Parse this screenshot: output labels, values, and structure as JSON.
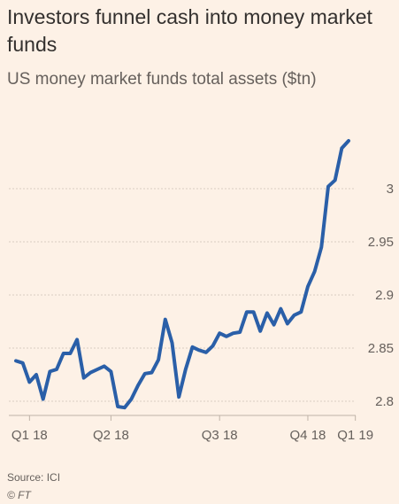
{
  "title": "Investors funnel cash into money market funds",
  "subtitle": "US money market funds total assets ($tn)",
  "source": "Source: ICI",
  "copyright": "© FT",
  "colors": {
    "line": "#2a5fa8",
    "grid": "#d9cdc1",
    "text": "#66605c",
    "background": "#fdf1e6"
  },
  "chart_data": {
    "type": "line",
    "title": "US money market funds total assets ($tn)",
    "xlabel": "",
    "ylabel": "",
    "ylim": [
      2.79,
      3.05
    ],
    "yticks": [
      2.8,
      2.85,
      2.9,
      2.95,
      3
    ],
    "ytick_labels": [
      "2.8",
      "2.85",
      "2.9",
      "2.95",
      "3"
    ],
    "xtick_labels": [
      "Q1 18",
      "Q2 18",
      "Q3 18",
      "Q4 18",
      "Q1 19"
    ],
    "xtick_index": [
      2,
      14,
      30,
      43,
      50
    ],
    "grid": true,
    "series": [
      {
        "values": [
          2.838,
          2.836,
          2.818,
          2.825,
          2.802,
          2.828,
          2.83,
          2.845,
          2.845,
          2.858,
          2.822,
          2.827,
          2.83,
          2.833,
          2.828,
          2.795,
          2.794,
          2.802,
          2.815,
          2.826,
          2.827,
          2.839,
          2.877,
          2.855,
          2.804,
          2.83,
          2.851,
          2.848,
          2.846,
          2.852,
          2.864,
          2.861,
          2.864,
          2.865,
          2.884,
          2.884,
          2.866,
          2.883,
          2.872,
          2.887,
          2.873,
          2.881,
          2.884,
          2.908,
          2.922,
          2.945,
          3.002,
          3.008,
          3.038,
          3.045
        ]
      }
    ]
  }
}
